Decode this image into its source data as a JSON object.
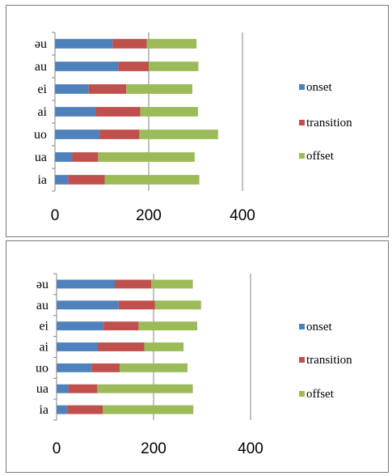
{
  "colors": {
    "onset": "#4f81bd",
    "transition": "#c0504d",
    "offset": "#9bbb59",
    "grid": "#868686",
    "axis": "#868686"
  },
  "chart_data": [
    {
      "type": "bar",
      "orientation": "horizontal",
      "stacked": true,
      "categories": [
        "ia",
        "ua",
        "uo",
        "ai",
        "ei",
        "au",
        "əu"
      ],
      "series": [
        {
          "name": "onset",
          "values": [
            28,
            37,
            95,
            87,
            72,
            135,
            123
          ]
        },
        {
          "name": "transition",
          "values": [
            78,
            55,
            85,
            95,
            80,
            65,
            73
          ]
        },
        {
          "name": "offset",
          "values": [
            202,
            206,
            168,
            123,
            141,
            106,
            106
          ]
        }
      ],
      "xlim": [
        0,
        400
      ],
      "xticks": [
        "0",
        "200",
        "400"
      ],
      "grid": "vertical",
      "legend": "right"
    },
    {
      "type": "bar",
      "orientation": "horizontal",
      "stacked": true,
      "categories": [
        "ia",
        "ua",
        "uo",
        "ai",
        "ei",
        "au",
        "əu"
      ],
      "series": [
        {
          "name": "onset",
          "values": [
            22,
            24,
            72,
            85,
            97,
            128,
            120
          ]
        },
        {
          "name": "transition",
          "values": [
            73,
            60,
            58,
            96,
            72,
            75,
            75
          ]
        },
        {
          "name": "offset",
          "values": [
            187,
            197,
            140,
            81,
            121,
            95,
            86
          ]
        }
      ],
      "xlim": [
        0,
        400
      ],
      "xticks": [
        "0",
        "200",
        "400"
      ],
      "grid": "vertical",
      "legend": "right"
    }
  ]
}
